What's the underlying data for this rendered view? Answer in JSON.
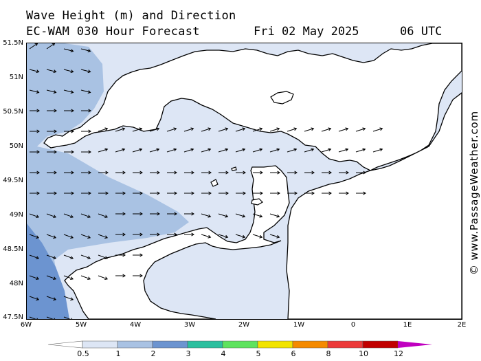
{
  "title": {
    "line1": "Wave Height (m) and Direction",
    "model": "EC-WAM 030 Hour Forecast",
    "date": "Fri 02 May 2025",
    "time": "06 UTC"
  },
  "watermark": "© www.PassageWeather.com",
  "latitude_labels": [
    "51.5N",
    "51N",
    "50.5N",
    "50N",
    "49.5N",
    "49N",
    "48.5N",
    "48N",
    "47.5N"
  ],
  "longitude_labels": [
    "6W",
    "5W",
    "4W",
    "3W",
    "2W",
    "1W",
    "0",
    "1E",
    "2E"
  ],
  "colorbar": {
    "tick_labels": [
      "0.5",
      "1",
      "2",
      "3",
      "4",
      "5",
      "6",
      "8",
      "10",
      "12"
    ],
    "colors": [
      "#ffffff",
      "#dde6f5",
      "#a9c2e3",
      "#6c94d0",
      "#2cbf9e",
      "#5ee35e",
      "#f2e400",
      "#f58a00",
      "#ec3a3a",
      "#c10000",
      "#c000c0"
    ]
  },
  "map_colors": {
    "sea_low": "#dde6f5",
    "sea_mid": "#a9c2e3",
    "sea_high": "#6c94d0",
    "land": "#ffffff",
    "coast": "#000000"
  }
}
